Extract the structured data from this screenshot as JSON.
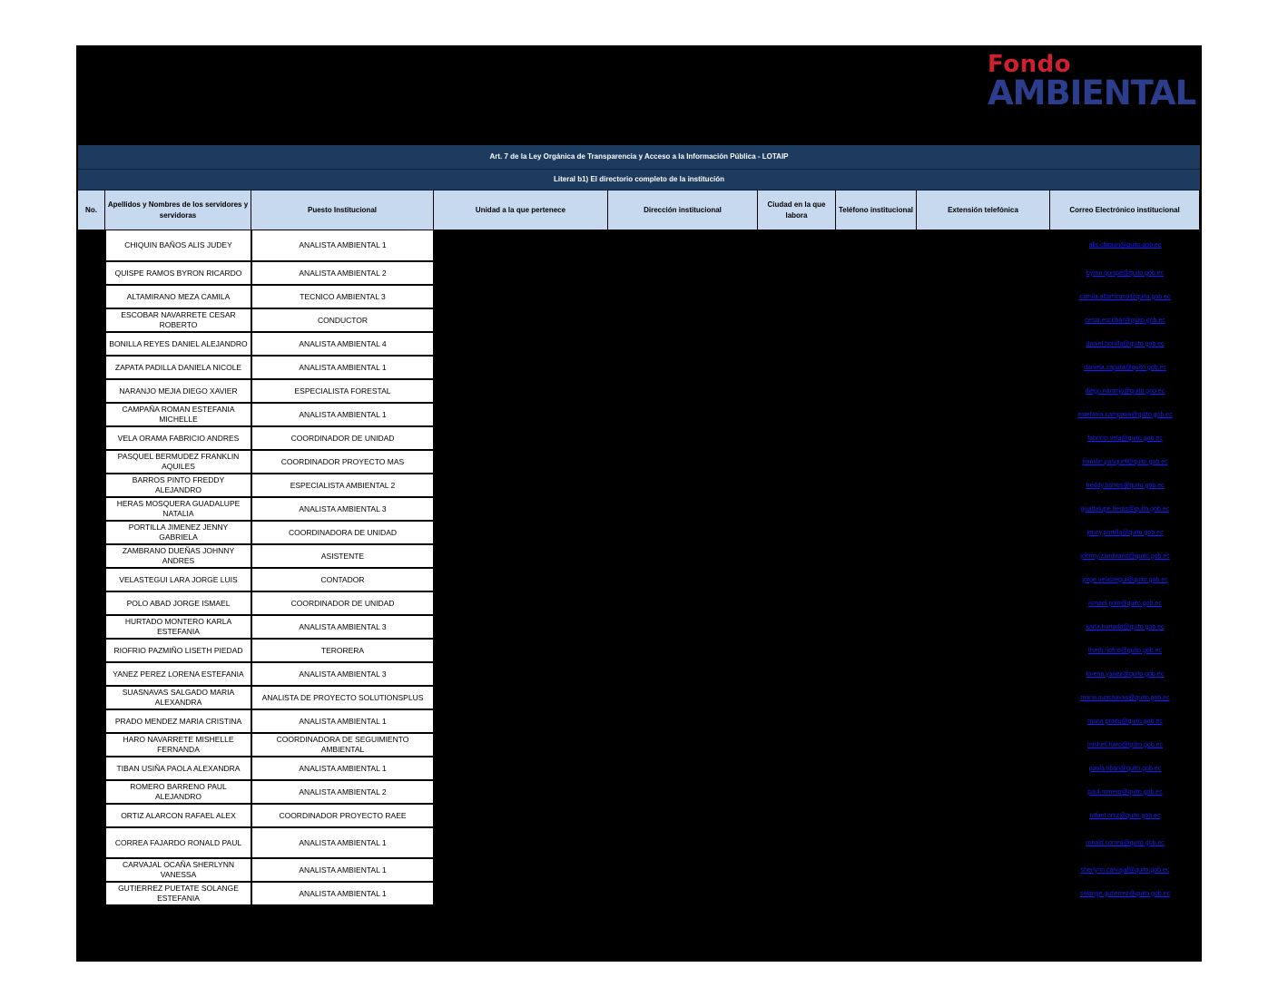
{
  "logo": {
    "line1": "Fondo",
    "line2": "AMBIENTAL",
    "color1": "#d0202f",
    "color2": "#2b3d8c"
  },
  "title": "Art. 7 de la Ley Orgánica de Transparencia y Acceso a la Información Pública - LOTAIP",
  "subtitle": "Literal b1) El directorio completo de la institución",
  "columns": [
    "No.",
    "Apellidos y Nombres de los servidores y servidoras",
    "Puesto Institucional",
    "Unidad a la que pertenece",
    "Dirección institucional",
    "Ciudad en la que labora",
    "Teléfono institucional",
    "Extensión telefónica",
    "Correo Electrónico institucional"
  ],
  "rows": [
    {
      "name": "CHIQUIN BAÑOS ALIS JUDEY",
      "puesto": "ANALISTA AMBIENTAL 1",
      "email": "alis.chiquin@quito.gob.ec"
    },
    {
      "name": "QUISPE RAMOS BYRON RICARDO",
      "puesto": "ANALISTA AMBIENTAL 2",
      "email": "byron.quispe@quito.gob.ec"
    },
    {
      "name": "ALTAMIRANO MEZA CAMILA",
      "puesto": "TECNICO AMBIENTAL 3",
      "email": "camila.altamirano@quito.gob.ec"
    },
    {
      "name": "ESCOBAR NAVARRETE CESAR ROBERTO",
      "puesto": "CONDUCTOR",
      "email": "cesar.escobar@quito.gob.ec"
    },
    {
      "name": "BONILLA REYES DANIEL ALEJANDRO",
      "puesto": "ANALISTA AMBIENTAL 4",
      "email": "daniel.bonilla@quito.gob.ec"
    },
    {
      "name": "ZAPATA PADILLA DANIELA NICOLE",
      "puesto": "ANALISTA AMBIENTAL 1",
      "email": "daniela.zapata@quito.gob.ec"
    },
    {
      "name": "NARANJO MEJIA DIEGO XAVIER",
      "puesto": "ESPECIALISTA FORESTAL",
      "email": "diego.naranjo@quito.gob.ec"
    },
    {
      "name": "CAMPAÑA ROMAN ESTEFANIA MICHELLE",
      "puesto": "ANALISTA AMBIENTAL 1",
      "email": "estefania.campana@quito.gob.ec"
    },
    {
      "name": "VELA ORAMA FABRICIO ANDRES",
      "puesto": "COORDINADOR DE UNIDAD",
      "email": "fabricio.vela@quito.gob.ec"
    },
    {
      "name": "PASQUEL BERMUDEZ FRANKLIN AQUILES",
      "puesto": "COORDINADOR PROYECTO MAS",
      "email": "franklin.pasquel@quito.gob.ec"
    },
    {
      "name": "BARROS PINTO FREDDY ALEJANDRO",
      "puesto": "ESPECIALISTA AMBIENTAL 2",
      "email": "freddy.barros@quito.gob.ec"
    },
    {
      "name": "HERAS MOSQUERA GUADALUPE NATALIA",
      "puesto": "ANALISTA AMBIENTAL 3",
      "email": "guadalupe.heras@quito.gob.ec"
    },
    {
      "name": "PORTILLA JIMENEZ JENNY GABRIELA",
      "puesto": "COORDINADORA DE UNIDAD",
      "email": "jenny.portilla@quito.gob.ec"
    },
    {
      "name": "ZAMBRANO DUEÑAS JOHNNY ANDRES",
      "puesto": "ASISTENTE",
      "email": "johnny.zambrano@quito.gob.ec"
    },
    {
      "name": "VELASTEGUI LARA JORGE LUIS",
      "puesto": "CONTADOR",
      "email": "jorge.velastegui@quito.gob.ec"
    },
    {
      "name": "POLO ABAD JORGE ISMAEL",
      "puesto": "COORDINADOR DE UNIDAD",
      "email": "ismael.polo@quito.gob.ec"
    },
    {
      "name": "HURTADO MONTERO KARLA ESTEFANIA",
      "puesto": "ANALISTA AMBIENTAL 3",
      "email": "karla.hurtado@quito.gob.ec"
    },
    {
      "name": "RIOFRIO PAZMIÑO LISETH PIEDAD",
      "puesto": "TERORERA",
      "email": "liseth.riofrio@quito.gob.ec"
    },
    {
      "name": "YANEZ PEREZ LORENA ESTEFANIA",
      "puesto": "ANALISTA AMBIENTAL 3",
      "email": "lorena.yanez@quito.gob.ec"
    },
    {
      "name": "SUASNAVAS SALGADO MARIA ALEXANDRA",
      "puesto": "ANALISTA DE PROYECTO SOLUTIONSPLUS",
      "email": "maria.suasnavas@quito.gob.ec"
    },
    {
      "name": "PRADO MENDEZ MARIA CRISTINA",
      "puesto": "ANALISTA AMBIENTAL 1",
      "email": "maria.prado@quito.gob.ec"
    },
    {
      "name": "HARO NAVARRETE MISHELLE FERNANDA",
      "puesto": "COORDINADORA DE SEGUIMIENTO AMBIENTAL",
      "email": "mishell.haro@quito.gob.ec"
    },
    {
      "name": "TIBAN USIÑA PAOLA ALEXANDRA",
      "puesto": "ANALISTA AMBIENTAL 1",
      "email": "paola.tiban@quito.gob.ec"
    },
    {
      "name": "ROMERO BARRENO PAUL ALEJANDRO",
      "puesto": "ANALISTA AMBIENTAL 2",
      "email": "paul.romero@quito.gob.ec"
    },
    {
      "name": "ORTIZ ALARCON RAFAEL ALEX",
      "puesto": "COORDINADOR PROYECTO RAEE",
      "email": "rafael.ortiz@quito.gob.ec"
    },
    {
      "name": "CORREA FAJARDO RONALD PAUL",
      "puesto": "ANALISTA AMBIENTAL 1",
      "email": "ronald.correa@quito.gob.ec"
    },
    {
      "name": "CARVAJAL OCAÑA SHERLYNN VANESSA",
      "puesto": "ANALISTA AMBIENTAL 1",
      "email": "sherlynn.carvajal@quito.gob.ec"
    },
    {
      "name": "GUTIERREZ PUETATE SOLANGE ESTEFANIA",
      "puesto": "ANALISTA AMBIENTAL 1",
      "email": "solange.gutierrez@quito.gob.ec"
    }
  ]
}
